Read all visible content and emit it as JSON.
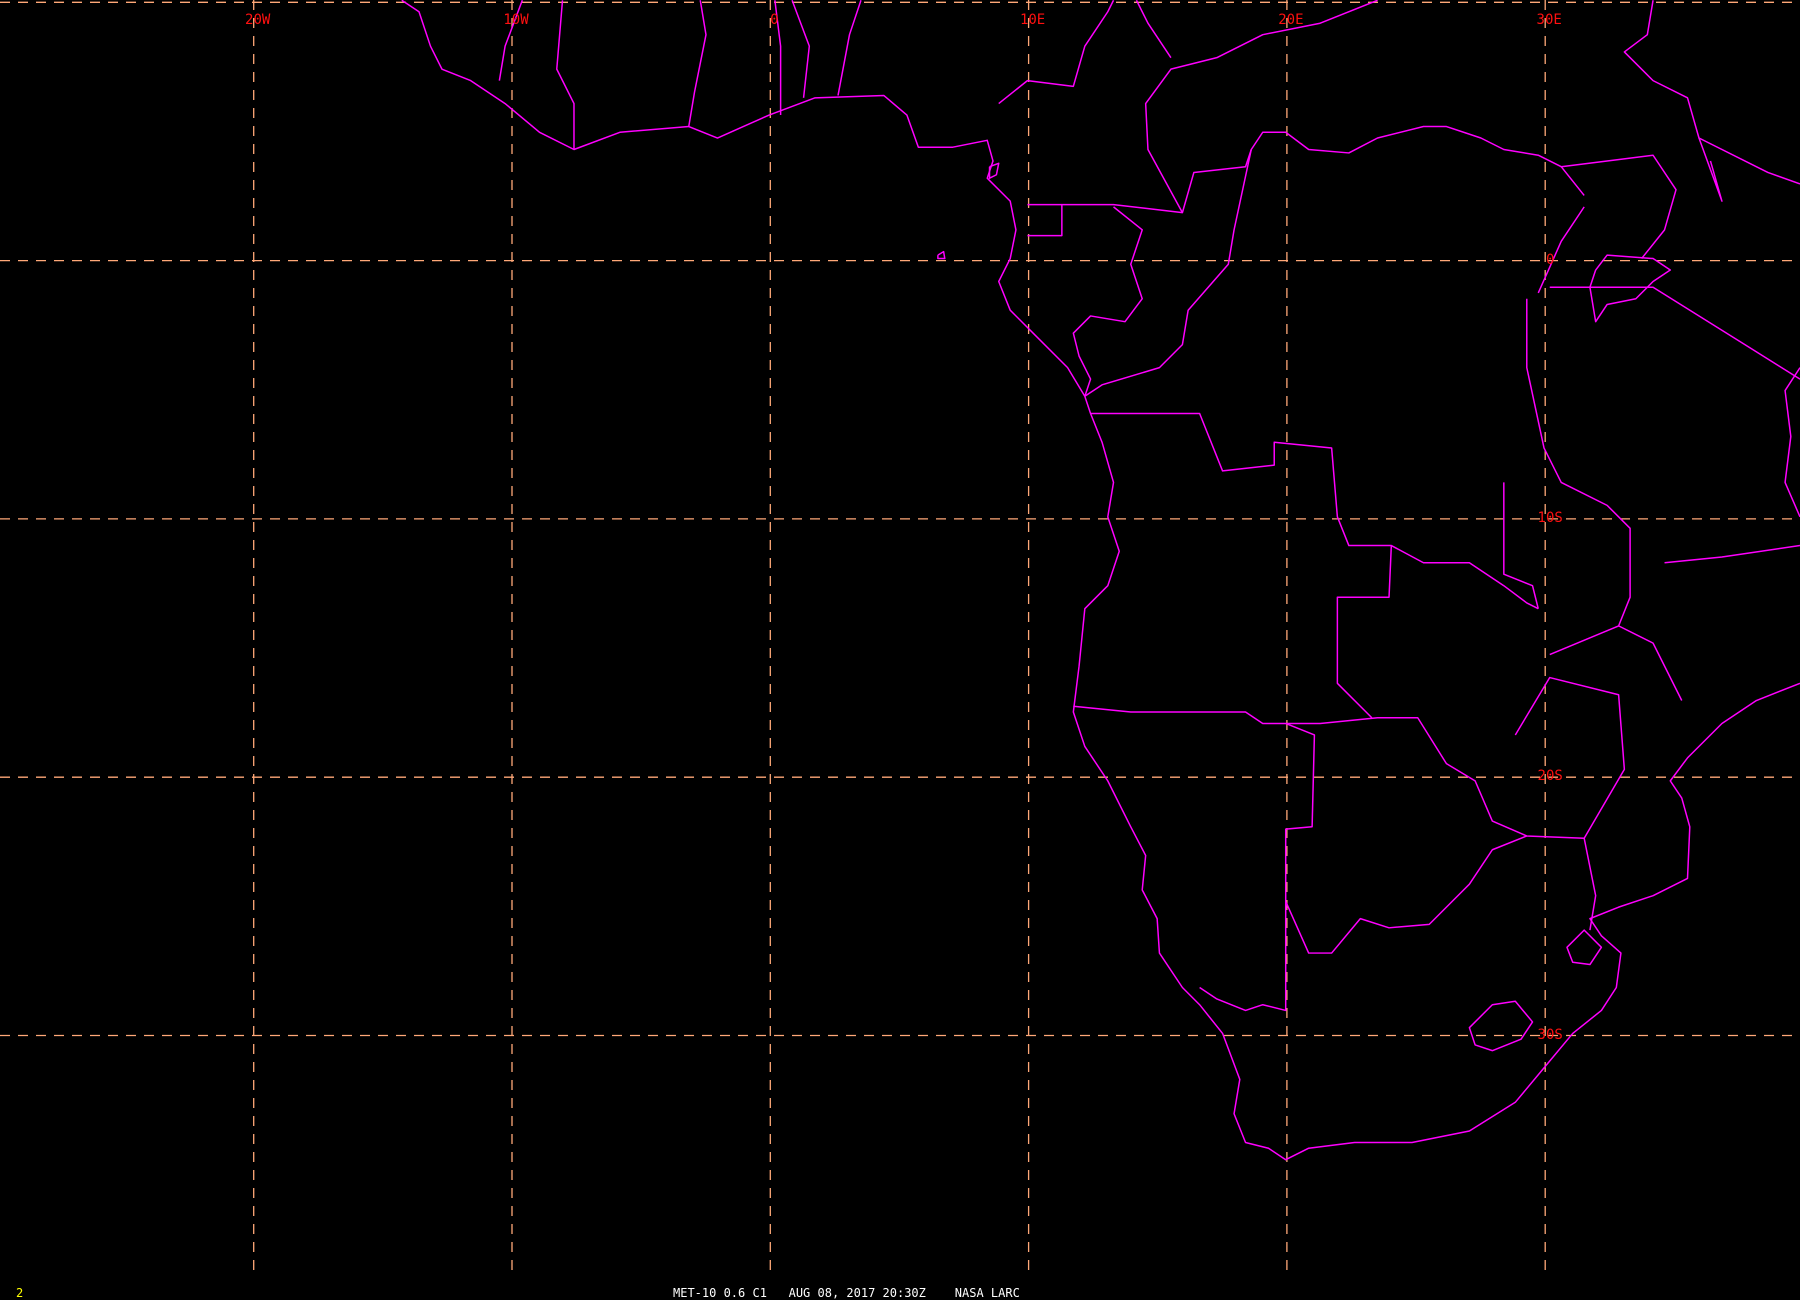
{
  "map": {
    "longitude_labels": [
      {
        "lon": -20,
        "text": "20W"
      },
      {
        "lon": -10,
        "text": "10W"
      },
      {
        "lon": 0,
        "text": "0"
      },
      {
        "lon": 10,
        "text": "10E"
      },
      {
        "lon": 20,
        "text": "20E"
      },
      {
        "lon": 30,
        "text": "30E"
      }
    ],
    "latitude_labels": [
      {
        "lat": 0,
        "text": "0"
      },
      {
        "lat": -10,
        "text": "10S"
      },
      {
        "lat": -20,
        "text": "20S"
      },
      {
        "lat": -30,
        "text": "30S"
      }
    ],
    "grid_latitudes": [
      10,
      0,
      -10,
      -20,
      -30
    ],
    "grid_longitudes": [
      -20,
      -10,
      0,
      10,
      20,
      30
    ],
    "colors": {
      "background": "#000000",
      "coastlines": "#ff00ff",
      "grid": "#ffa878",
      "grid_labels": "#ff1010"
    }
  },
  "footer": {
    "frame_number": "2",
    "satellite": "MET-10 0.6 C1",
    "datetime": "AUG 08, 2017 20:30Z",
    "source": "NASA LARC"
  }
}
